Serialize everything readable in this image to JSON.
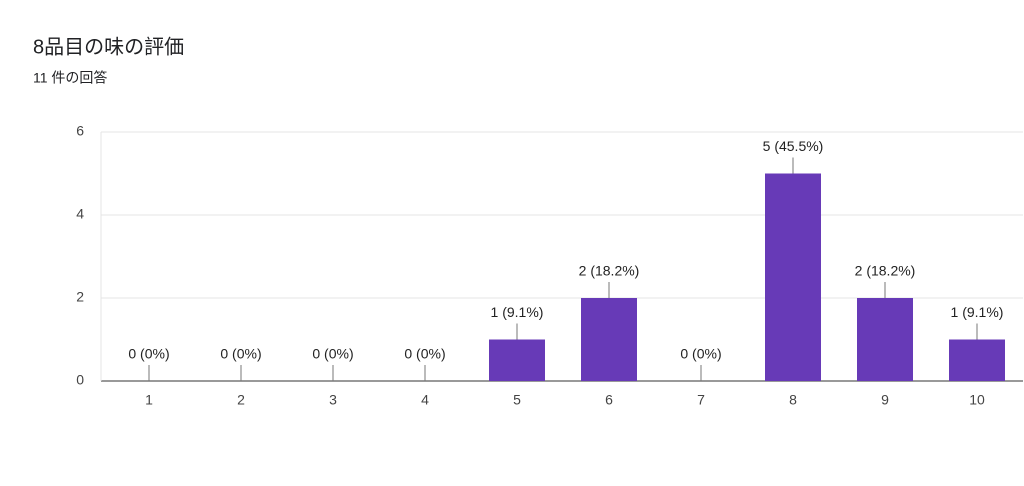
{
  "chart_data": {
    "type": "bar",
    "title": "8品目の味の評価",
    "subtitle": "11 件の回答",
    "categories": [
      "1",
      "2",
      "3",
      "4",
      "5",
      "6",
      "7",
      "8",
      "9",
      "10"
    ],
    "values": [
      0,
      0,
      0,
      0,
      1,
      2,
      0,
      5,
      2,
      1
    ],
    "value_labels": [
      "0 (0%)",
      "0 (0%)",
      "0 (0%)",
      "0 (0%)",
      "1 (9.1%)",
      "2 (18.2%)",
      "0 (0%)",
      "5 (45.5%)",
      "2 (18.2%)",
      "1 (9.1%)"
    ],
    "color": "#673ab7",
    "ylim": [
      0,
      6
    ],
    "yticks": [
      0,
      2,
      4,
      6
    ],
    "grid": true
  }
}
